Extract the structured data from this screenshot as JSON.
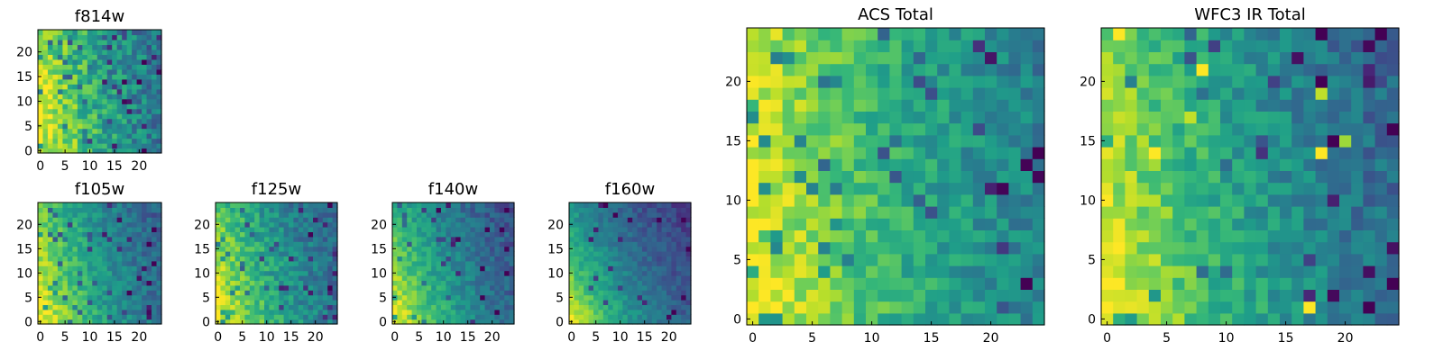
{
  "chart_data": [
    {
      "type": "heatmap",
      "title": "f814w",
      "grid_size": 25,
      "xticks": [
        "0",
        "5",
        "10",
        "15",
        "20"
      ],
      "yticks": [
        "0",
        "5",
        "10",
        "15",
        "20"
      ],
      "xlim": [
        0,
        24
      ],
      "ylim": [
        0,
        24
      ],
      "colormap": "viridis",
      "seed": 11,
      "falloff": 0.04,
      "tilt": 0.15,
      "noise": 0.34,
      "dark_spots": 0.1,
      "bright_spots": 0.0
    },
    {
      "type": "heatmap",
      "title": "f105w",
      "grid_size": 25,
      "xticks": [
        "0",
        "5",
        "10",
        "15",
        "20"
      ],
      "yticks": [
        "0",
        "5",
        "10",
        "15",
        "20"
      ],
      "xlim": [
        0,
        24
      ],
      "ylim": [
        0,
        24
      ],
      "colormap": "viridis",
      "seed": 23,
      "falloff": 0.045,
      "tilt": 0.25,
      "noise": 0.22,
      "dark_spots": 0.06,
      "bright_spots": 0.0
    },
    {
      "type": "heatmap",
      "title": "f125w",
      "grid_size": 25,
      "xticks": [
        "0",
        "5",
        "10",
        "15",
        "20"
      ],
      "yticks": [
        "0",
        "5",
        "10",
        "15",
        "20"
      ],
      "xlim": [
        0,
        24
      ],
      "ylim": [
        0,
        24
      ],
      "colormap": "viridis",
      "seed": 37,
      "falloff": 0.042,
      "tilt": 0.3,
      "noise": 0.26,
      "dark_spots": 0.07,
      "bright_spots": 0.0
    },
    {
      "type": "heatmap",
      "title": "f140w",
      "grid_size": 25,
      "xticks": [
        "0",
        "5",
        "10",
        "15",
        "20"
      ],
      "yticks": [
        "0",
        "5",
        "10",
        "15",
        "20"
      ],
      "xlim": [
        0,
        24
      ],
      "ylim": [
        0,
        24
      ],
      "colormap": "viridis",
      "seed": 41,
      "falloff": 0.048,
      "tilt": 0.4,
      "noise": 0.2,
      "dark_spots": 0.05,
      "bright_spots": 0.0
    },
    {
      "type": "heatmap",
      "title": "f160w",
      "grid_size": 25,
      "xticks": [
        "0",
        "5",
        "10",
        "15",
        "20"
      ],
      "yticks": [
        "0",
        "5",
        "10",
        "15",
        "20"
      ],
      "xlim": [
        0,
        24
      ],
      "ylim": [
        0,
        24
      ],
      "colormap": "viridis",
      "seed": 53,
      "falloff": 0.055,
      "tilt": 0.55,
      "noise": 0.16,
      "dark_spots": 0.04,
      "bright_spots": 0.0
    },
    {
      "type": "heatmap",
      "title": "ACS Total",
      "grid_size": 25,
      "xticks": [
        "0",
        "5",
        "10",
        "15",
        "20"
      ],
      "yticks": [
        "0",
        "5",
        "10",
        "15",
        "20"
      ],
      "xlim": [
        0,
        24
      ],
      "ylim": [
        0,
        24
      ],
      "colormap": "viridis",
      "seed": 67,
      "falloff": 0.036,
      "tilt": 0.1,
      "noise": 0.24,
      "dark_spots": 0.05,
      "bright_spots": 0.0
    },
    {
      "type": "heatmap",
      "title": "WFC3 IR Total",
      "grid_size": 25,
      "xticks": [
        "0",
        "5",
        "10",
        "15",
        "20"
      ],
      "yticks": [
        "0",
        "5",
        "10",
        "15",
        "20"
      ],
      "xlim": [
        0,
        24
      ],
      "ylim": [
        0,
        24
      ],
      "colormap": "viridis",
      "seed": 79,
      "falloff": 0.045,
      "tilt": 0.2,
      "noise": 0.24,
      "dark_spots": 0.06,
      "bright_spots": 0.012
    }
  ]
}
